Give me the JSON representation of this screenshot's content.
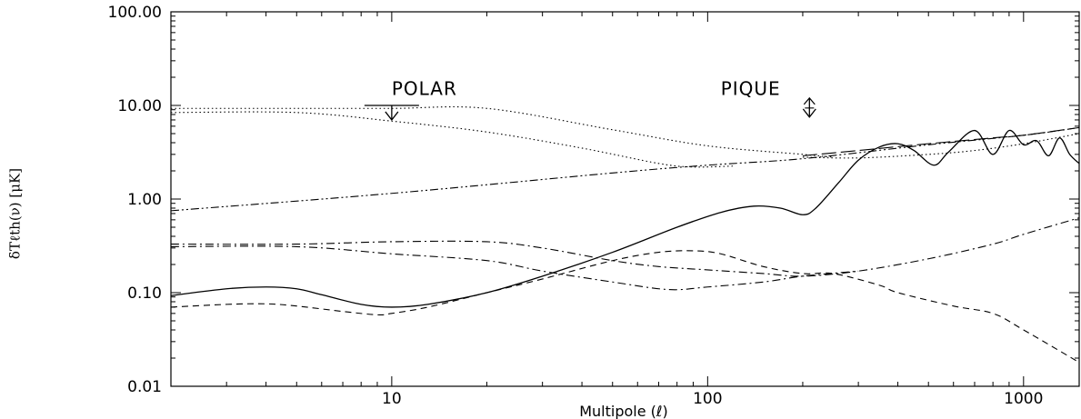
{
  "chart_data": {
    "type": "line",
    "xlabel": "Multipole (ℓ)",
    "ylabel": "δTℓth(ν) [μK]",
    "x_scale": "log",
    "y_scale": "log",
    "xlim": [
      2,
      1500
    ],
    "ylim": [
      0.01,
      100
    ],
    "x_ticks": [
      {
        "value": 10,
        "label": "10"
      },
      {
        "value": 100,
        "label": "100"
      },
      {
        "value": 1000,
        "label": "1000"
      }
    ],
    "y_ticks": [
      {
        "value": 0.01,
        "label": "0.01"
      },
      {
        "value": 0.1,
        "label": "0.10"
      },
      {
        "value": 1,
        "label": "1.00"
      },
      {
        "value": 10,
        "label": "10.00"
      },
      {
        "value": 100,
        "label": "100.00"
      }
    ],
    "grid": false,
    "legend": "none",
    "annotations": [
      {
        "text": "POLAR",
        "x": 10,
        "y": 13,
        "marker": "arrow-down",
        "arrow_x": 10,
        "arrow_top": 10,
        "arrow_bottom": 7
      },
      {
        "text": "PIQUE",
        "x": 110,
        "y": 13,
        "marker": "double-arrow",
        "arrow_x": 210,
        "arrow_top": 12,
        "arrow_bottom": 7.5
      }
    ],
    "series": [
      {
        "style": "solid",
        "x": [
          2,
          3,
          4,
          5,
          6,
          8,
          10,
          13,
          20,
          30,
          50,
          80,
          110,
          140,
          170,
          200,
          220,
          260,
          300,
          350,
          400,
          450,
          520,
          580,
          700,
          800,
          900,
          1000,
          1100,
          1200,
          1300,
          1400,
          1500
        ],
        "y": [
          0.093,
          0.11,
          0.115,
          0.11,
          0.095,
          0.075,
          0.07,
          0.075,
          0.1,
          0.15,
          0.27,
          0.5,
          0.72,
          0.84,
          0.8,
          0.68,
          0.8,
          1.5,
          2.6,
          3.6,
          3.9,
          3.3,
          2.3,
          3.2,
          5.4,
          3.0,
          5.4,
          3.8,
          4.2,
          2.9,
          4.5,
          3.0,
          2.4
        ]
      },
      {
        "style": "dashed",
        "x": [
          2,
          3,
          4,
          5,
          7,
          9,
          10,
          13,
          20,
          30,
          50,
          70,
          90,
          110,
          150,
          200,
          250,
          350,
          400,
          600,
          800,
          1000,
          1500
        ],
        "y": [
          0.07,
          0.075,
          0.076,
          0.072,
          0.063,
          0.058,
          0.06,
          0.07,
          0.1,
          0.14,
          0.22,
          0.27,
          0.28,
          0.26,
          0.19,
          0.16,
          0.16,
          0.12,
          0.1,
          0.072,
          0.06,
          0.04,
          0.018
        ]
      },
      {
        "style": "dash-dot",
        "x": [
          2,
          5,
          10,
          20,
          30,
          50,
          70,
          100,
          150,
          200,
          300,
          500,
          800,
          1000,
          1500
        ],
        "y": [
          0.33,
          0.33,
          0.35,
          0.35,
          0.3,
          0.22,
          0.19,
          0.175,
          0.16,
          0.15,
          0.17,
          0.23,
          0.33,
          0.42,
          0.63
        ]
      },
      {
        "style": "dash-dot",
        "x": [
          2,
          5,
          10,
          20,
          30,
          50,
          75,
          100,
          150,
          200,
          300
        ],
        "y": [
          0.31,
          0.31,
          0.26,
          0.22,
          0.17,
          0.13,
          0.108,
          0.115,
          0.13,
          0.15,
          0.17
        ]
      },
      {
        "style": "dash-dot-dot",
        "x": [
          2,
          10,
          50,
          100,
          200,
          500,
          1000,
          1500
        ],
        "y": [
          0.75,
          1.15,
          1.9,
          2.3,
          2.7,
          3.8,
          4.8,
          5.8
        ]
      },
      {
        "style": "long-dash",
        "x": [
          200,
          300,
          500,
          800,
          1000,
          1500
        ],
        "y": [
          2.9,
          3.3,
          3.9,
          4.5,
          4.8,
          5.8
        ]
      },
      {
        "style": "dotted",
        "x": [
          2,
          5,
          10,
          20,
          50,
          100,
          200,
          250
        ],
        "y": [
          9.3,
          9.3,
          9.3,
          9.3,
          5.5,
          3.7,
          3.0,
          2.8
        ]
      },
      {
        "style": "dotted",
        "x": [
          2,
          5,
          10,
          20,
          40,
          70,
          90,
          120
        ],
        "y": [
          8.4,
          8.4,
          6.8,
          5.2,
          3.5,
          2.4,
          2.2,
          2.25
        ]
      },
      {
        "style": "dotted",
        "x": [
          200,
          300,
          500,
          700,
          1000,
          1500
        ],
        "y": [
          2.8,
          2.75,
          3.0,
          3.3,
          3.9,
          5.0
        ]
      }
    ]
  }
}
